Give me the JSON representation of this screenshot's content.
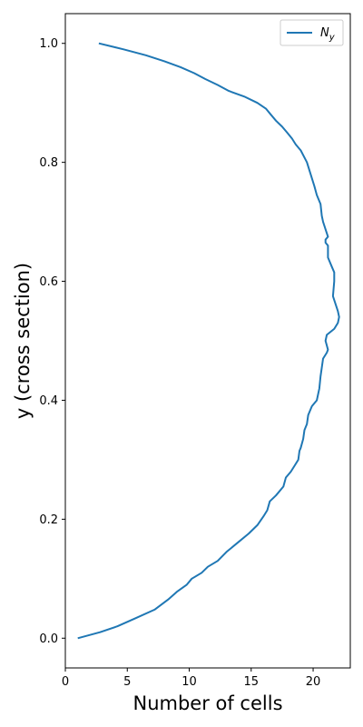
{
  "chart_data": {
    "type": "line",
    "title": "",
    "xlabel": "Number of cells",
    "ylabel": "y (cross section)",
    "xlim": [
      0,
      23
    ],
    "ylim": [
      -0.05,
      1.05
    ],
    "xticks": [
      0,
      5,
      10,
      15,
      20
    ],
    "yticks": [
      0.0,
      0.2,
      0.4,
      0.6,
      0.8,
      1.0
    ],
    "xtick_labels": [
      "0",
      "5",
      "10",
      "15",
      "20"
    ],
    "ytick_labels": [
      "0.0",
      "0.2",
      "0.4",
      "0.6",
      "0.8",
      "1.0"
    ],
    "grid": false,
    "legend": {
      "position": "top-right",
      "entries": [
        "N_y"
      ]
    },
    "series": [
      {
        "name": "N_y",
        "color": "#1f77b4",
        "x": [
          1.0,
          2.8,
          4.2,
          5.6,
          7.2,
          8.3,
          9.0,
          9.8,
          10.2,
          11.0,
          11.5,
          12.3,
          13.0,
          14.0,
          14.8,
          15.5,
          16.0,
          16.3,
          16.5,
          17.0,
          17.6,
          17.8,
          18.2,
          18.5,
          18.8,
          18.9,
          19.0,
          19.2,
          19.3,
          19.5,
          19.6,
          19.9,
          20.3,
          20.5,
          20.6,
          20.7,
          20.8,
          21.1,
          21.2,
          21.0,
          21.1,
          21.7,
          22.0,
          22.1,
          22.0,
          21.6,
          21.7,
          21.7,
          21.5,
          21.2,
          21.2,
          21.0,
          21.0,
          21.2,
          20.8,
          20.7,
          20.6,
          20.3,
          20.1,
          19.8,
          19.5,
          19.0,
          18.6,
          18.3,
          17.9,
          17.5,
          17.0,
          16.6,
          16.2,
          15.5,
          14.5,
          13.2,
          12.3,
          11.3,
          10.4,
          9.3,
          8.0,
          6.5,
          4.7,
          2.7
        ],
        "y": [
          0.0,
          0.01,
          0.02,
          0.033,
          0.048,
          0.065,
          0.078,
          0.09,
          0.1,
          0.11,
          0.12,
          0.13,
          0.145,
          0.162,
          0.176,
          0.19,
          0.205,
          0.215,
          0.23,
          0.24,
          0.255,
          0.27,
          0.28,
          0.29,
          0.3,
          0.315,
          0.32,
          0.335,
          0.35,
          0.36,
          0.375,
          0.39,
          0.4,
          0.42,
          0.44,
          0.455,
          0.47,
          0.48,
          0.485,
          0.5,
          0.51,
          0.52,
          0.53,
          0.54,
          0.55,
          0.575,
          0.6,
          0.615,
          0.625,
          0.64,
          0.66,
          0.665,
          0.67,
          0.675,
          0.7,
          0.71,
          0.73,
          0.745,
          0.76,
          0.78,
          0.8,
          0.82,
          0.83,
          0.84,
          0.85,
          0.86,
          0.87,
          0.88,
          0.89,
          0.9,
          0.91,
          0.92,
          0.93,
          0.94,
          0.95,
          0.96,
          0.97,
          0.98,
          0.99,
          1.0
        ]
      }
    ]
  }
}
